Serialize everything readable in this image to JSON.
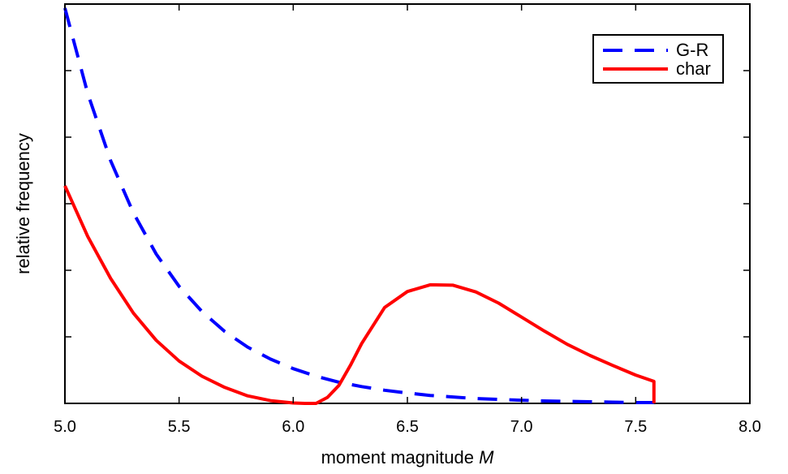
{
  "chart_data": {
    "type": "line",
    "title": "",
    "xlabel": "moment magnitude",
    "xlabel_var": "M",
    "ylabel": "relative frequency",
    "xlim": [
      5.0,
      8.0
    ],
    "ylim": [
      0,
      1
    ],
    "x_ticks": [
      "5.0",
      "5.5",
      "6.0",
      "6.5",
      "7.0",
      "7.5",
      "8.0"
    ],
    "x_tick_values": [
      5.0,
      5.5,
      6.0,
      6.5,
      7.0,
      7.5,
      8.0
    ],
    "y_ticks_count": 6,
    "y_tick_labels_shown": false,
    "grid": false,
    "legend": "top-right",
    "series": [
      {
        "name": "G-R",
        "color": "#0000ff",
        "style": "dashed",
        "x": [
          5.0,
          5.1,
          5.2,
          5.3,
          5.4,
          5.5,
          5.6,
          5.7,
          5.8,
          5.9,
          6.0,
          6.1,
          6.2,
          6.3,
          6.4,
          6.5,
          6.6,
          6.7,
          6.8,
          6.9,
          7.0,
          7.1,
          7.2,
          7.3,
          7.4,
          7.5,
          7.58
        ],
        "y": [
          0.99,
          0.776,
          0.608,
          0.477,
          0.374,
          0.293,
          0.23,
          0.18,
          0.141,
          0.111,
          0.087,
          0.068,
          0.053,
          0.042,
          0.033,
          0.026,
          0.02,
          0.016,
          0.012,
          0.01,
          0.008,
          0.006,
          0.005,
          0.004,
          0.003,
          0.002,
          0.002
        ]
      },
      {
        "name": "char",
        "color": "#ff0000",
        "style": "solid",
        "x": [
          5.0,
          5.1,
          5.2,
          5.3,
          5.4,
          5.5,
          5.6,
          5.7,
          5.8,
          5.9,
          6.0,
          6.05,
          6.1,
          6.15,
          6.2,
          6.25,
          6.3,
          6.4,
          6.5,
          6.6,
          6.7,
          6.8,
          6.9,
          7.0,
          7.1,
          7.2,
          7.3,
          7.4,
          7.5,
          7.58,
          7.58
        ],
        "y": [
          0.545,
          0.418,
          0.313,
          0.226,
          0.158,
          0.106,
          0.068,
          0.04,
          0.019,
          0.007,
          0.001,
          0.0,
          0.0,
          0.015,
          0.045,
          0.095,
          0.15,
          0.24,
          0.28,
          0.297,
          0.296,
          0.279,
          0.251,
          0.216,
          0.181,
          0.148,
          0.12,
          0.095,
          0.071,
          0.055,
          0.0
        ]
      }
    ]
  }
}
